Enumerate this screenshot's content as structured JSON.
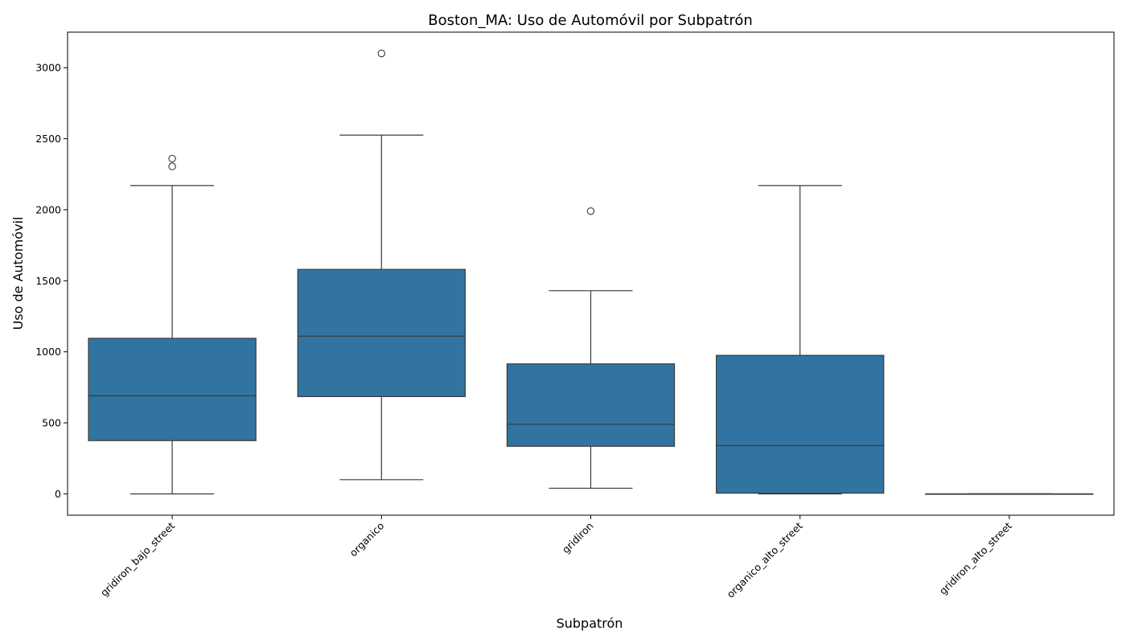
{
  "chart_data": {
    "type": "box",
    "title": "Boston_MA: Uso de Automóvil por Subpatrón",
    "xlabel": "Subpatrón",
    "ylabel": "Uso de Automóvil",
    "ylim": [
      -150,
      3250
    ],
    "yticks": [
      0,
      500,
      1000,
      1500,
      2000,
      2500,
      3000
    ],
    "grid": false,
    "legend": "none",
    "box_color": "#3274a1",
    "line_color": "#3b3b3b",
    "categories": [
      "gridiron_bajo_street",
      "organico",
      "gridiron",
      "organico_alto_street",
      "gridiron_alto_street"
    ],
    "boxes": [
      {
        "category": "gridiron_bajo_street",
        "whisker_low": 0,
        "q1": 375,
        "median": 690,
        "q3": 1095,
        "whisker_high": 2170,
        "outliers": [
          2305,
          2360
        ]
      },
      {
        "category": "organico",
        "whisker_low": 100,
        "q1": 685,
        "median": 1110,
        "q3": 1580,
        "whisker_high": 2525,
        "outliers": [
          3100
        ]
      },
      {
        "category": "gridiron",
        "whisker_low": 40,
        "q1": 335,
        "median": 490,
        "q3": 915,
        "whisker_high": 1430,
        "outliers": [
          1990
        ]
      },
      {
        "category": "organico_alto_street",
        "whisker_low": 0,
        "q1": 5,
        "median": 340,
        "q3": 975,
        "whisker_high": 2170,
        "outliers": []
      },
      {
        "category": "gridiron_alto_street",
        "whisker_low": 0,
        "q1": 0,
        "median": 0,
        "q3": 0,
        "whisker_high": 0,
        "outliers": []
      }
    ]
  }
}
